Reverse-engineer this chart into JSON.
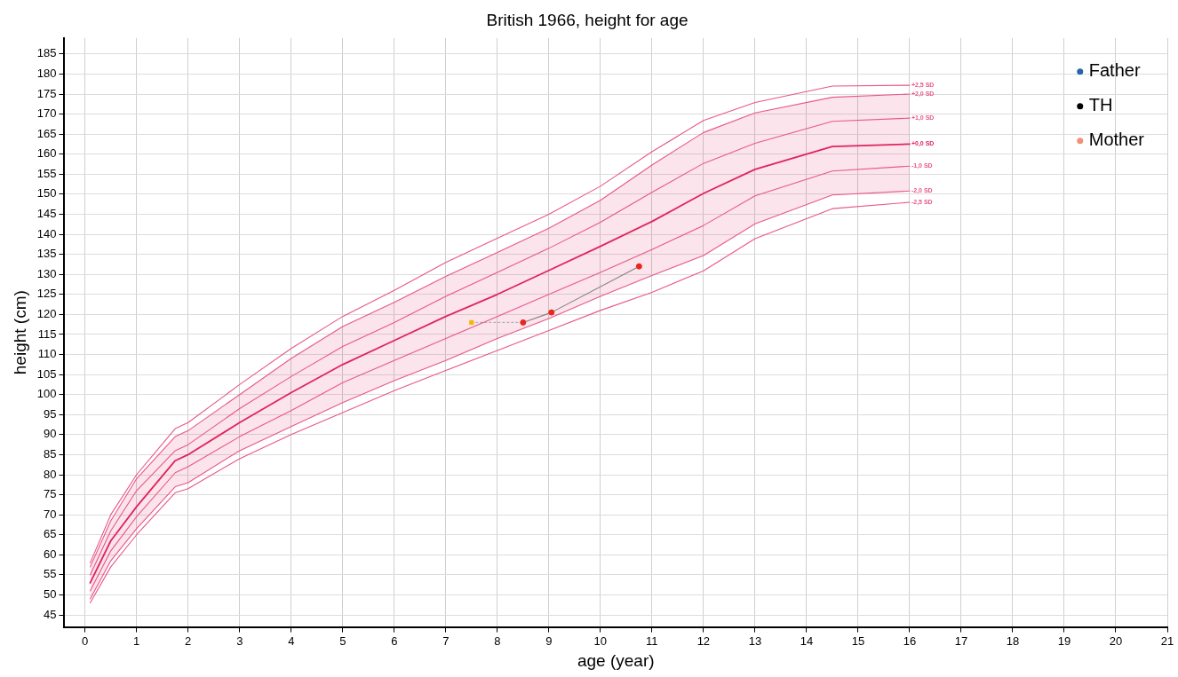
{
  "chart_data": {
    "type": "line",
    "title": "British 1966, height for age",
    "xlabel": "age (year)",
    "ylabel": "height (cm)",
    "x": [
      0.1,
      0.5,
      1,
      1.75,
      2,
      3,
      4,
      5,
      6,
      7,
      8,
      9,
      10,
      11,
      12,
      13,
      14.5,
      16
    ],
    "xlim": [
      -0.4,
      21
    ],
    "xticks": [
      0,
      1,
      2,
      3,
      4,
      5,
      6,
      7,
      8,
      9,
      10,
      11,
      12,
      13,
      14,
      15,
      16,
      17,
      18,
      19,
      20,
      21
    ],
    "ylim": [
      42,
      189
    ],
    "yticks": [
      45,
      50,
      55,
      60,
      65,
      70,
      75,
      80,
      85,
      90,
      95,
      100,
      105,
      110,
      115,
      120,
      125,
      130,
      135,
      140,
      145,
      150,
      155,
      160,
      165,
      170,
      175,
      180,
      185
    ],
    "grid": true,
    "legend": "top right",
    "marker": "none",
    "series": [
      {
        "name": "+2,5 SD",
        "color": "#e8578a",
        "values": [
          58,
          70,
          80,
          91.5,
          93,
          102.5,
          111.5,
          119.5,
          126,
          133,
          139,
          145,
          152,
          160.6,
          168.4,
          172.9,
          177,
          177.2
        ]
      },
      {
        "name": "+2,0 SD",
        "color": "#e8578a",
        "values": [
          57,
          68.5,
          79,
          89.5,
          91,
          100,
          109,
          117,
          123,
          129.5,
          135.5,
          141.5,
          148.5,
          157.3,
          165.4,
          170.3,
          174.2,
          175
        ]
      },
      {
        "name": "+1,0 SD",
        "color": "#e8578a",
        "values": [
          55,
          66,
          76,
          86,
          87.5,
          96.5,
          104.5,
          112,
          118,
          124.5,
          130.5,
          136.5,
          143,
          150.5,
          157.7,
          162.7,
          168.2,
          169
        ]
      },
      {
        "name": "+0,0 SD",
        "color": "#e0245e",
        "values": [
          53,
          63.5,
          72,
          83.5,
          85,
          93,
          100.5,
          107.5,
          113.5,
          119.5,
          125,
          131,
          137,
          143.2,
          150.2,
          156.2,
          161.9,
          162.5
        ],
        "lower": [
          49,
          58.5,
          66.5,
          77,
          78,
          86,
          92,
          98,
          103.5,
          108.5,
          114,
          119,
          124.5,
          129.7,
          134.7,
          142.6,
          149.8,
          150.8
        ],
        "upper": [
          57,
          68.5,
          79,
          89.5,
          91,
          100,
          109,
          117,
          123,
          129.5,
          135.5,
          141.5,
          148.5,
          157.3,
          165.4,
          170.3,
          174.2,
          175
        ]
      },
      {
        "name": "-1,0 SD",
        "color": "#e8578a",
        "values": [
          51,
          61,
          69.5,
          80.5,
          82,
          89.5,
          96,
          103,
          108.5,
          114,
          119.5,
          125,
          130.5,
          136.2,
          142.2,
          149.6,
          155.8,
          157
        ]
      },
      {
        "name": "-2,0 SD",
        "color": "#e8578a",
        "values": [
          49,
          58.5,
          66.5,
          77,
          78,
          86,
          92,
          98,
          103.5,
          108.5,
          114,
          119,
          124.5,
          129.7,
          134.7,
          142.6,
          149.8,
          150.8
        ]
      },
      {
        "name": "-2,5 SD",
        "color": "#e8578a",
        "values": [
          48,
          57,
          65,
          75.5,
          76.5,
          84,
          90,
          95.5,
          101,
          106,
          111,
          116,
          121,
          125.5,
          130.9,
          138.9,
          146.4,
          148
        ]
      },
      {
        "type": "line",
        "color": "#b0b0b0",
        "line_style": "dotted",
        "x": [
          7.5,
          8.5
        ],
        "values": [
          118,
          118
        ]
      },
      {
        "type": "line",
        "color": "#808080",
        "x": [
          8.5,
          9.05,
          10.75
        ],
        "values": [
          118,
          120.5,
          132
        ]
      },
      {
        "type": "scatter",
        "color": "#f5b800",
        "marker": "square",
        "x": [
          7.5
        ],
        "values": [
          118
        ]
      },
      {
        "type": "scatter",
        "color": "#e8281e",
        "marker": "circle",
        "x": [
          8.5,
          9.05,
          10.75
        ],
        "values": [
          118,
          120.5,
          132
        ]
      },
      {
        "type": "scatter",
        "name": "Father",
        "color": "#2a63a8",
        "marker": "circle",
        "values": [
          null,
          null,
          null,
          null,
          null,
          null,
          null,
          null,
          null,
          null,
          null,
          null,
          null,
          null,
          null,
          null,
          null,
          null
        ]
      },
      {
        "type": "scatter",
        "name": "TH",
        "color": "#000000",
        "marker": "circle",
        "values": [
          null,
          null,
          null,
          null,
          null,
          null,
          null,
          null,
          null,
          null,
          null,
          null,
          null,
          null,
          null,
          null,
          null,
          null
        ]
      },
      {
        "type": "scatter",
        "name": "Mother",
        "color": "#f0907a",
        "marker": "circle",
        "values": [
          null,
          null,
          null,
          null,
          null,
          null,
          null,
          null,
          null,
          null,
          null,
          null,
          null,
          null,
          null,
          null,
          null,
          null
        ]
      }
    ]
  }
}
